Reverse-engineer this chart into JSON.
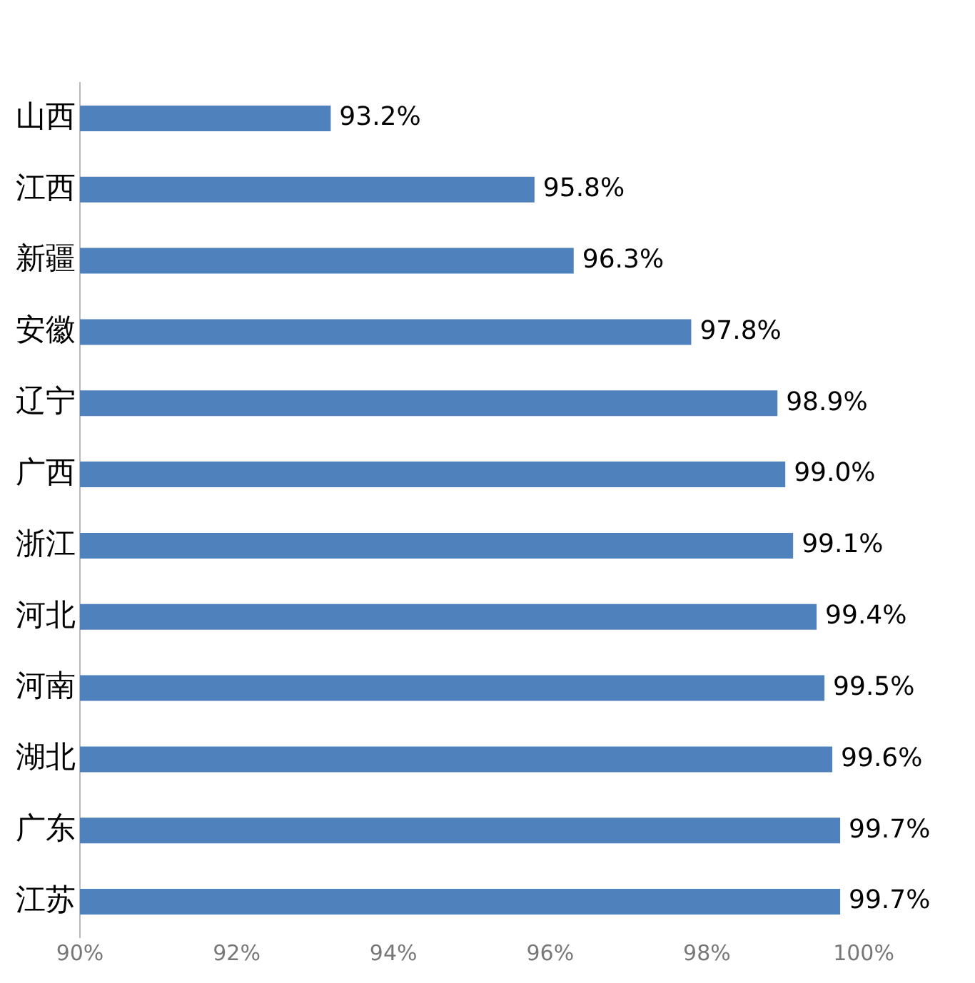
{
  "chart_data": {
    "type": "bar",
    "orientation": "horizontal",
    "categories": [
      "山西",
      "江西",
      "新疆",
      "安徽",
      "辽宁",
      "广西",
      "浙江",
      "河北",
      "河南",
      "湖北",
      "广东",
      "江苏"
    ],
    "values": [
      93.2,
      95.8,
      96.3,
      97.8,
      98.9,
      99.0,
      99.1,
      99.4,
      99.5,
      99.6,
      99.7,
      99.7
    ],
    "value_labels": [
      "93.2%",
      "95.8%",
      "96.3%",
      "97.8%",
      "98.9%",
      "99.0%",
      "99.1%",
      "99.4%",
      "99.5%",
      "99.6%",
      "99.7%",
      "99.7%"
    ],
    "color": "#4f81bd",
    "xlim": [
      90,
      100
    ],
    "xticks": [
      {
        "value": 90,
        "label": "90%"
      },
      {
        "value": 92,
        "label": "92%"
      },
      {
        "value": 94,
        "label": "94%"
      },
      {
        "value": 96,
        "label": "96%"
      },
      {
        "value": 98,
        "label": "98%"
      },
      {
        "value": 100,
        "label": "100%"
      }
    ],
    "grid": false,
    "legend": false
  }
}
